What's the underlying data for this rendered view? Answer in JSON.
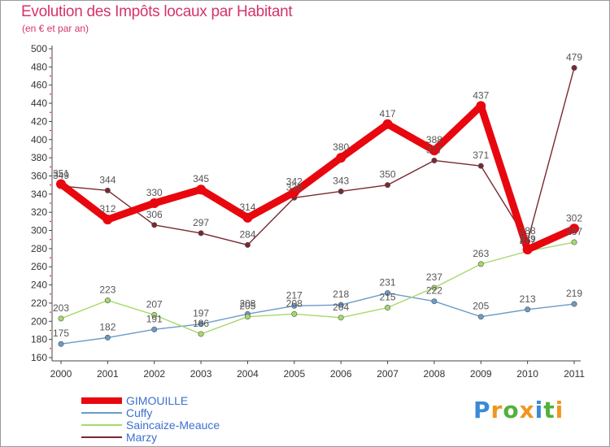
{
  "header": {
    "title": "Evolution des Impôts locaux par Habitant",
    "subtitle": "(en € et par an)"
  },
  "brand": {
    "text": "Proxiti",
    "colors": [
      "#3a8ad6",
      "#f0961e",
      "#52b13c"
    ]
  },
  "chart_data": {
    "type": "line",
    "title": "Evolution des Impôts locaux par Habitant",
    "subtitle": "(en € et par an)",
    "xlabel": "",
    "ylabel": "",
    "x": [
      "2000",
      "2001",
      "2002",
      "2003",
      "2004",
      "2005",
      "2006",
      "2007",
      "2008",
      "2009",
      "2010",
      "2011"
    ],
    "ylim": [
      160,
      500
    ],
    "yticks": [
      160,
      180,
      200,
      220,
      240,
      260,
      280,
      300,
      320,
      340,
      360,
      380,
      400,
      420,
      440,
      460,
      480,
      500
    ],
    "grid": false,
    "legend_position": "bottom-left",
    "series": [
      {
        "name": "GIMOUILLE",
        "color": "#e8070e",
        "style": "thick",
        "values": [
          351,
          312,
          330,
          345,
          314,
          342,
          380,
          417,
          388,
          437,
          279,
          302
        ],
        "labels": [
          "351",
          "312",
          "330",
          "345",
          "314",
          "342",
          "380",
          "417",
          "388",
          "437",
          "279",
          "302"
        ]
      },
      {
        "name": "Cuffy",
        "color": "#6b9bc8",
        "style": "thin",
        "values": [
          175,
          182,
          191,
          197,
          208,
          217,
          218,
          231,
          222,
          205,
          213,
          219
        ],
        "labels": [
          "175",
          "182",
          "191",
          "197",
          "208",
          "217",
          "218",
          "231",
          "222",
          "205",
          "213",
          "219"
        ]
      },
      {
        "name": "Saincaize-Meauce",
        "color": "#a6d96a",
        "style": "thin",
        "values": [
          203,
          223,
          207,
          186,
          205,
          208,
          204,
          215,
          237,
          263,
          277,
          287
        ],
        "labels": [
          "203",
          "223",
          "207",
          "186",
          "205",
          "208",
          "204",
          "215",
          "237",
          "263",
          "277",
          "287"
        ]
      },
      {
        "name": "Marzy",
        "color": "#7a2830",
        "style": "thin",
        "values": [
          349,
          344,
          306,
          297,
          284,
          336,
          343,
          350,
          377,
          371,
          288,
          479
        ],
        "labels": [
          "349",
          "344",
          "306",
          "297",
          "284",
          "336",
          "343",
          "350",
          "377",
          "371",
          "288",
          "479"
        ]
      }
    ]
  }
}
